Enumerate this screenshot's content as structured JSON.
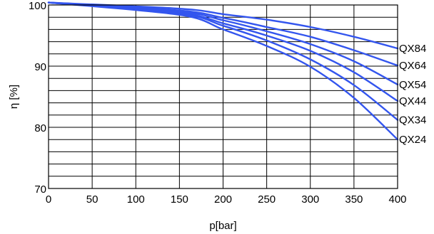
{
  "chart_data": {
    "type": "line",
    "title": "",
    "xlabel": "p[bar]",
    "ylabel": "η [%]",
    "xlim": [
      0,
      400
    ],
    "ylim": [
      70,
      100
    ],
    "x_ticks": [
      "0",
      "50",
      "100",
      "150",
      "200",
      "250",
      "300",
      "350",
      "400"
    ],
    "y_ticks": [
      "70",
      "80",
      "90",
      "100"
    ],
    "grid": true,
    "line_color": "#3355ee",
    "series": [
      {
        "name": "QX84",
        "points": [
          [
            0,
            100.4
          ],
          [
            150,
            99.4
          ],
          [
            200,
            98.5
          ],
          [
            250,
            97.6
          ],
          [
            300,
            96.4
          ],
          [
            350,
            94.8
          ],
          [
            400,
            92.9
          ]
        ]
      },
      {
        "name": "QX64",
        "points": [
          [
            0,
            100.4
          ],
          [
            150,
            99.1
          ],
          [
            200,
            97.9
          ],
          [
            250,
            96.4
          ],
          [
            300,
            94.8
          ],
          [
            350,
            92.6
          ],
          [
            400,
            90.1
          ]
        ]
      },
      {
        "name": "QX54",
        "points": [
          [
            0,
            100.4
          ],
          [
            150,
            98.9
          ],
          [
            200,
            97.5
          ],
          [
            250,
            95.7
          ],
          [
            300,
            93.6
          ],
          [
            350,
            90.8
          ],
          [
            400,
            87.0
          ]
        ]
      },
      {
        "name": "QX44",
        "points": [
          [
            0,
            100.4
          ],
          [
            150,
            98.7
          ],
          [
            200,
            97.0
          ],
          [
            250,
            95.0
          ],
          [
            300,
            92.5
          ],
          [
            350,
            89.0
          ],
          [
            400,
            84.3
          ]
        ]
      },
      {
        "name": "QX34",
        "points": [
          [
            0,
            100.4
          ],
          [
            150,
            98.6
          ],
          [
            200,
            96.6
          ],
          [
            250,
            94.2
          ],
          [
            300,
            91.1
          ],
          [
            350,
            86.9
          ],
          [
            400,
            81.2
          ]
        ]
      },
      {
        "name": "QX24",
        "points": [
          [
            0,
            100.4
          ],
          [
            150,
            98.4
          ],
          [
            200,
            96.0
          ],
          [
            250,
            93.3
          ],
          [
            300,
            89.9
          ],
          [
            350,
            84.8
          ],
          [
            400,
            78.0
          ]
        ]
      }
    ]
  }
}
